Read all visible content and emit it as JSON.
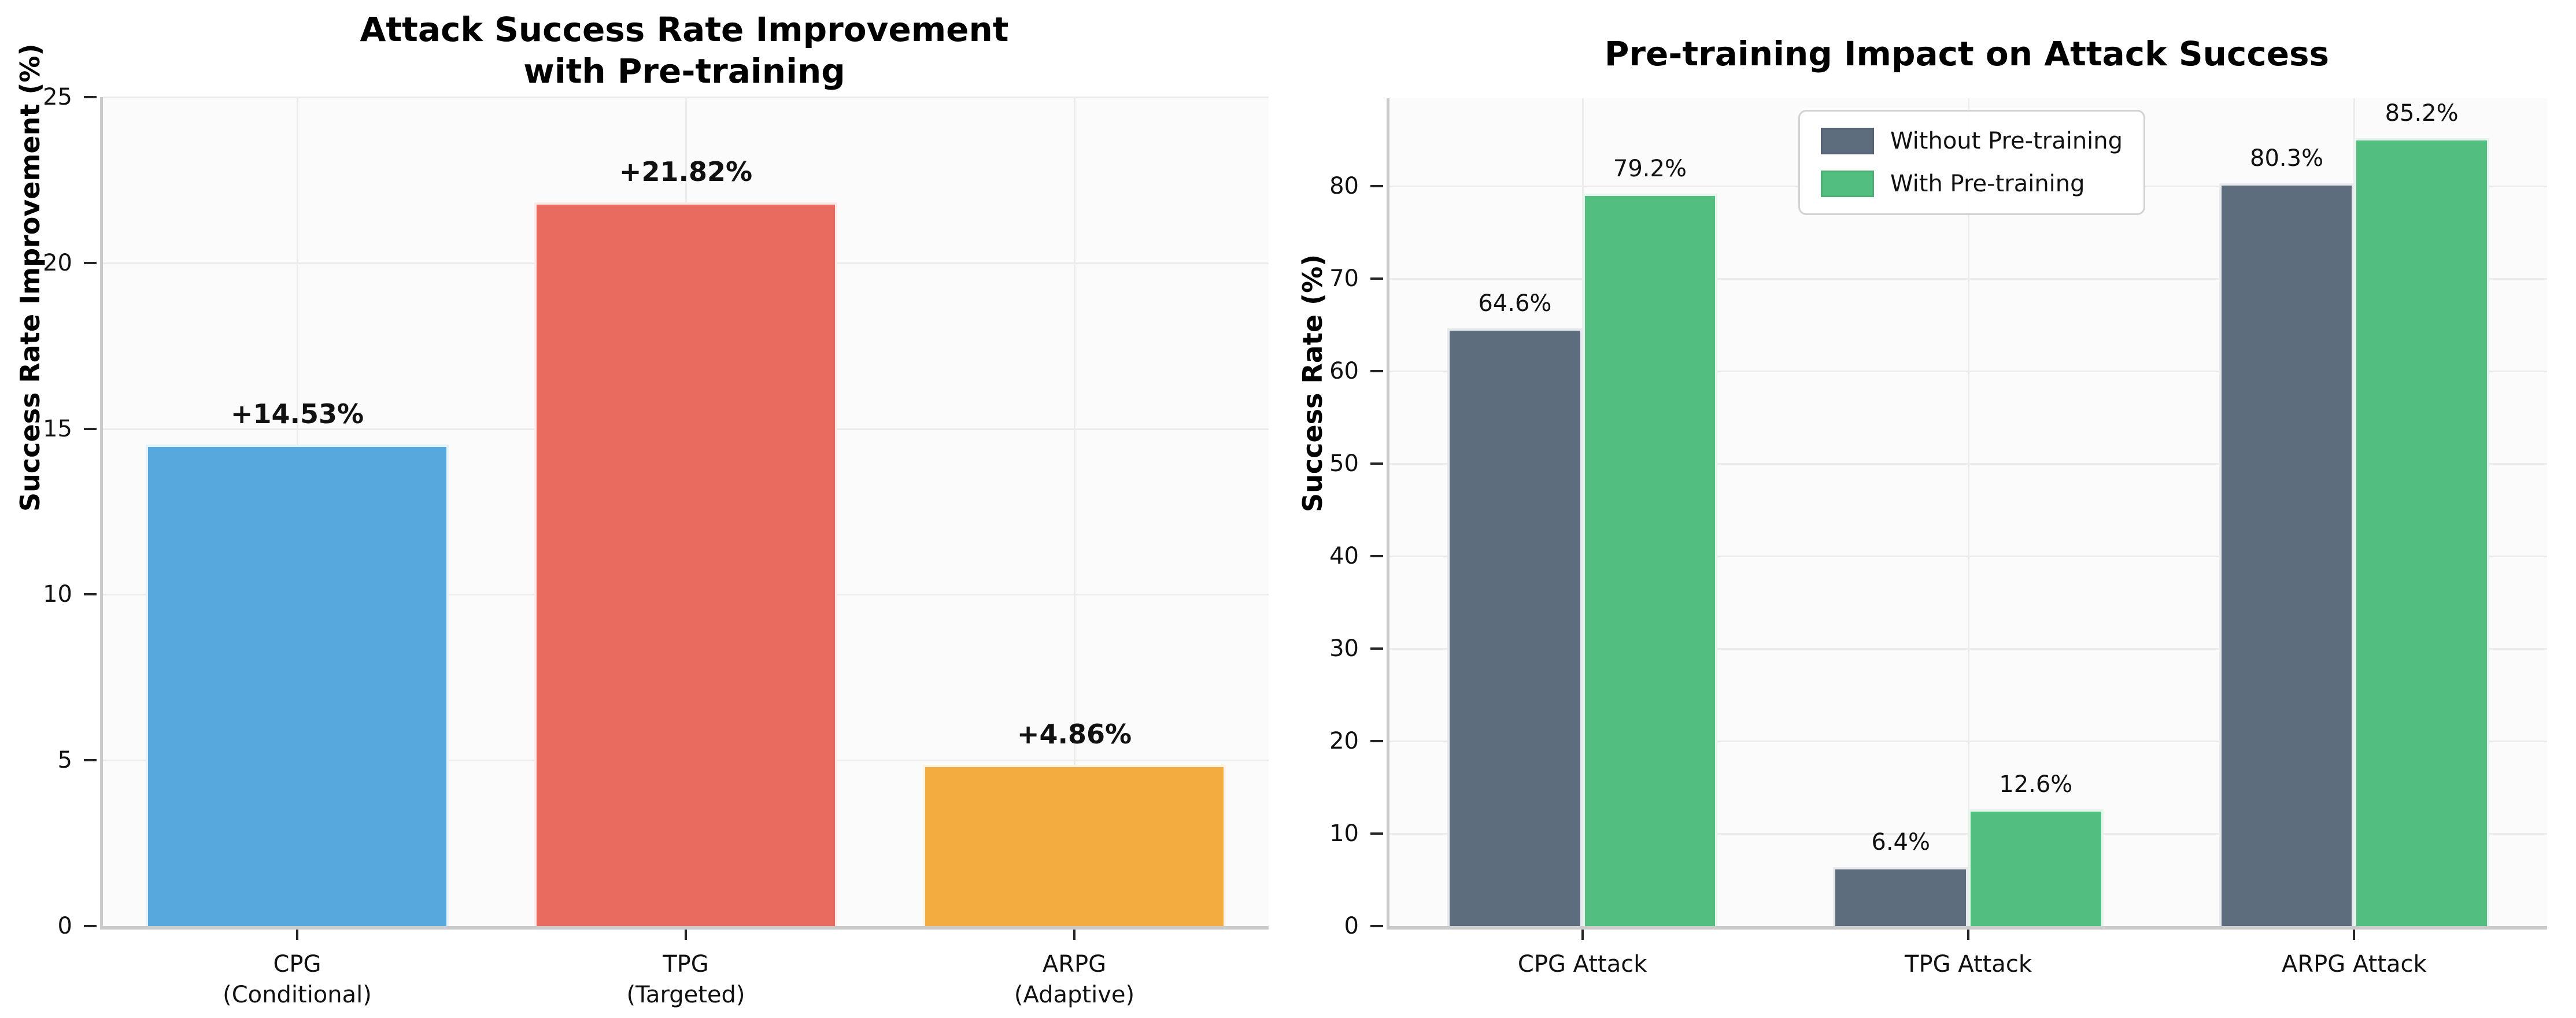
{
  "chart_data": [
    {
      "type": "bar",
      "title": "Attack Success Rate Improvement with Pre-training",
      "title_lines": [
        "Attack Success Rate Improvement",
        "with Pre-training"
      ],
      "ylabel": "Success Rate Improvement (%)",
      "categories": [
        [
          "CPG",
          "(Conditional)"
        ],
        [
          "TPG",
          "(Targeted)"
        ],
        [
          "ARPG",
          "(Adaptive)"
        ]
      ],
      "values": [
        14.53,
        21.82,
        4.86
      ],
      "value_labels": [
        "+14.53%",
        "+21.82%",
        "+4.86%"
      ],
      "bar_colors": [
        "#57a9dd",
        "#e96b5f",
        "#f2ac40"
      ],
      "ylim": [
        0,
        25
      ],
      "yticks": [
        0,
        5,
        10,
        15,
        20,
        25
      ],
      "grid": true,
      "legend_position": "none"
    },
    {
      "type": "grouped_bar",
      "title": "Pre-training Impact on Attack Success",
      "ylabel": "Success Rate (%)",
      "categories": [
        "CPG Attack",
        "TPG Attack",
        "ARPG Attack"
      ],
      "series": [
        {
          "name": "Without Pre-training",
          "color": "#5d6d7e",
          "values": [
            64.6,
            6.4,
            80.3
          ],
          "value_labels": [
            "64.6%",
            "6.4%",
            "80.3%"
          ]
        },
        {
          "name": "With Pre-training",
          "color": "#52be80",
          "values": [
            79.2,
            12.6,
            85.2
          ],
          "value_labels": [
            "79.2%",
            "12.6%",
            "85.2%"
          ]
        }
      ],
      "ylim": [
        0,
        89.5
      ],
      "yticks": [
        0,
        10,
        20,
        30,
        40,
        50,
        60,
        70,
        80
      ],
      "grid": true,
      "legend_position": "upper center"
    }
  ],
  "style": {
    "figure_bg": "#ffffff",
    "plot_bg": "#fbfbfb",
    "grid_color": "#ececec",
    "spine_color": "#cbcbcb",
    "tick_color": "#262626",
    "text_color": "#111111",
    "legend_border": "#d2d2d2"
  }
}
